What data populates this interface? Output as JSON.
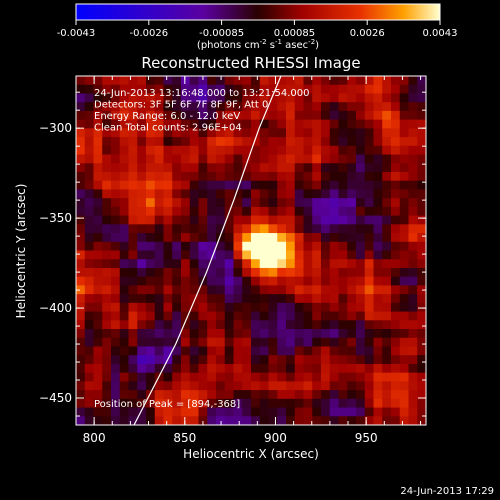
{
  "colorbar": {
    "ticks": [
      "-0.0043",
      "-0.0026",
      "-0.00085",
      "0.00085",
      "0.0026",
      "0.0043"
    ],
    "units_main": "(photons cm",
    "units_exp1": "-2",
    "units_mid": " s",
    "units_exp2": "-1",
    "units_tail": " asec",
    "units_exp3": "-2",
    "units_close": ")"
  },
  "chart_data": {
    "type": "heatmap",
    "title": "Reconstructed RHESSI Image",
    "xlabel": "Heliocentric X (arcsec)",
    "ylabel": "Heliocentric Y (arcsec)",
    "xlim": [
      790,
      983
    ],
    "ylim": [
      -465,
      -271
    ],
    "xticks": [
      800,
      850,
      900,
      950
    ],
    "yticks": [
      -300,
      -350,
      -400,
      -450
    ],
    "zlim": [
      -0.0043,
      0.0043
    ],
    "peak": {
      "x": 894,
      "y": -368
    },
    "info_lines": [
      "24-Jun-2013 13:16:48.000 to 13:21:54.000",
      "Detectors: 3F 5F 6F 7F 8F 9F, Att 0",
      "Energy Range: 6.0 - 12.0 keV",
      "Clean    Total counts: 2.96E+04"
    ],
    "peak_label": "Position of Peak = [894,-368]",
    "limb_curve": [
      [
        822,
        -465
      ],
      [
        845,
        -420
      ],
      [
        862,
        -380
      ],
      [
        877,
        -340
      ],
      [
        891,
        -300
      ],
      [
        903,
        -271
      ]
    ]
  },
  "footer": {
    "timestamp": "24-Jun-2013 17:29"
  }
}
